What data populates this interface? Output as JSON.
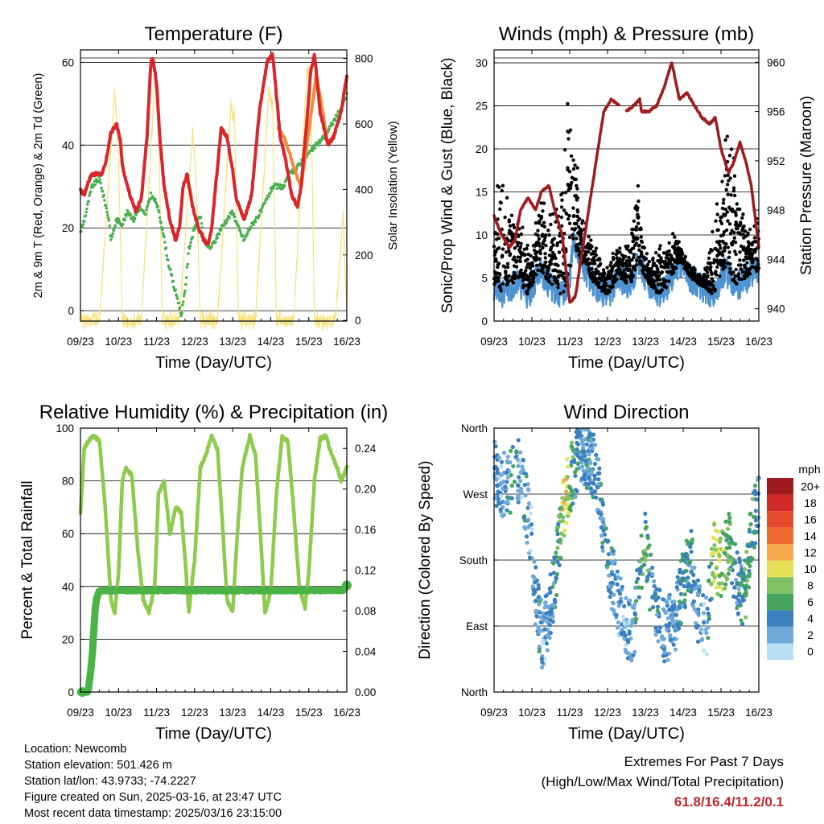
{
  "panels": {
    "temperature": {
      "title": "Temperature (F)",
      "xlabel": "Time (Day/UTC)",
      "ylabel_left": "2m & 9m T (Red, Orange) & 2m Td (Green)",
      "ylabel_right": "Solar Insolation (Yellow)"
    },
    "winds": {
      "title": "Winds (mph) & Pressure (mb)",
      "xlabel": "Time (Day/UTC)",
      "ylabel_left": "Sonic/Prop Wind & Gust (Blue, Black)",
      "ylabel_right": "Station Pressure (Maroon)"
    },
    "humidity": {
      "title": "Relative Humidity (%) & Precipitation (in)",
      "xlabel": "Time (Day/UTC)",
      "ylabel_left": "Percent & Total Rainfall"
    },
    "direction": {
      "title": "Wind Direction",
      "xlabel": "Time (Day/UTC)",
      "ylabel_left": "Direction (Colored By Speed)",
      "colorbar_title": "mph",
      "colorbar_labels": [
        "20+",
        "18",
        "16",
        "14",
        "12",
        "10",
        "8",
        "6",
        "4",
        "2",
        "0"
      ],
      "colorbar_colors": [
        "#9e1a1e",
        "#cf2a27",
        "#e54a2c",
        "#f06a32",
        "#f6a94a",
        "#e6e157",
        "#7fc163",
        "#45a55e",
        "#3a80bf",
        "#6ea9d9",
        "#b8e0f5"
      ]
    }
  },
  "colors": {
    "temp_2m": "#d9262b",
    "temp_9m": "#f48a34",
    "dewpoint": "#4caf50",
    "solar": "#f5e27a",
    "wind": "#4d93d1",
    "gust": "#000000",
    "pressure": "#9e1b1e",
    "rh": "#8ccb4b",
    "precip": "#4ab346"
  },
  "meta": {
    "location": "Location: Newcomb",
    "elevation": "Station elevation: 501.426 m",
    "latlon": "Station lat/lon: 43.9733; -74.2227",
    "created": "Figure created on Sun, 2025-03-16, at 23:47 UTC",
    "recent": "Most recent data timestamp: 2025/03/16 23:15:00"
  },
  "extremes": {
    "title": "Extremes For Past 7 Days",
    "subtitle": "(High/Low/Max Wind/Total Precipitation)",
    "values": "61.8/16.4/11.2/0.1"
  },
  "chart_data": [
    {
      "type": "line",
      "panel": "temperature",
      "xticks": [
        "09/23",
        "10/23",
        "11/23",
        "12/23",
        "13/23",
        "14/23",
        "15/23",
        "16/23"
      ],
      "xlim": [
        0,
        7
      ],
      "ylim_left": [
        -2.5,
        63
      ],
      "yticks_left": [
        0,
        20,
        40,
        60
      ],
      "ylim_right": [
        -2,
        826
      ],
      "yticks_right": [
        0,
        200,
        400,
        600,
        800
      ],
      "series": [
        {
          "name": "2m T",
          "x": [
            0,
            0.1,
            0.2,
            0.3,
            0.55,
            0.65,
            0.8,
            0.95,
            1.05,
            1.1,
            1.3,
            1.45,
            1.6,
            1.75,
            1.85,
            1.9,
            2.0,
            2.1,
            2.2,
            2.35,
            2.5,
            2.6,
            2.7,
            2.8,
            2.95,
            3.1,
            3.25,
            3.35,
            3.45,
            3.55,
            3.7,
            3.85,
            4.0,
            4.1,
            4.3,
            4.5,
            4.6,
            4.7,
            4.9,
            5.05,
            5.15,
            5.25,
            5.3,
            5.4,
            5.55,
            5.7,
            5.8,
            5.95,
            6.05,
            6.15,
            6.3,
            6.5,
            6.65,
            6.85,
            7.0
          ],
          "y": [
            29,
            28,
            31,
            33,
            33,
            35,
            43,
            45,
            41,
            35,
            28,
            24,
            27,
            42,
            60,
            61,
            55,
            40,
            30,
            22,
            17,
            20,
            30,
            33,
            25,
            20,
            17,
            16,
            20,
            30,
            44,
            42,
            34,
            27,
            22,
            28,
            38,
            48,
            60,
            62,
            52,
            42,
            40,
            36,
            28,
            25,
            30,
            46,
            58,
            62,
            48,
            40,
            42,
            48,
            57
          ]
        },
        {
          "name": "9m T",
          "x": [
            5.2,
            5.35,
            5.5,
            5.7,
            5.8,
            6.2,
            6.4,
            6.5
          ],
          "y": [
            44,
            42,
            38,
            32,
            30,
            57,
            46,
            40
          ]
        },
        {
          "name": "2m Td",
          "x": [
            0,
            0.1,
            0.3,
            0.5,
            0.6,
            0.75,
            0.8,
            0.95,
            1.1,
            1.25,
            1.4,
            1.55,
            1.7,
            1.85,
            2.0,
            2.15,
            2.3,
            2.45,
            2.55,
            2.65,
            2.75,
            2.85,
            3.0,
            3.15,
            3.25,
            3.4,
            3.55,
            3.7,
            3.85,
            4.0,
            4.15,
            4.3,
            4.45,
            4.6,
            4.75,
            4.9,
            5.05,
            5.2,
            5.35,
            5.5,
            5.65,
            5.8,
            6.0,
            6.2,
            6.4,
            6.6,
            6.8,
            7.0
          ],
          "y": [
            19,
            22,
            30,
            32,
            28,
            22,
            17,
            22,
            21,
            24,
            22,
            25,
            23,
            28,
            26,
            20,
            12,
            6,
            3,
            -1,
            5,
            15,
            20,
            23,
            17,
            15,
            17,
            20,
            22,
            24,
            20,
            17,
            20,
            22,
            24,
            27,
            30,
            30,
            30,
            33,
            34,
            36,
            38,
            40,
            42,
            45,
            48,
            52
          ]
        },
        {
          "name": "Solar Insolation",
          "axis": "right",
          "x": [
            0,
            0.5,
            0.9,
            1.0,
            1.1,
            1.6,
            1.95,
            2.05,
            2.15,
            2.6,
            2.95,
            3.05,
            3.15,
            3.6,
            3.95,
            4.05,
            4.15,
            4.6,
            4.95,
            5.05,
            5.15,
            5.6,
            5.95,
            6.05,
            6.15,
            6.7,
            6.9,
            7.0
          ],
          "y": [
            0,
            0,
            700,
            500,
            0,
            0,
            720,
            650,
            0,
            0,
            580,
            400,
            0,
            0,
            650,
            620,
            0,
            0,
            700,
            660,
            0,
            0,
            760,
            740,
            0,
            0,
            320,
            20
          ]
        }
      ]
    },
    {
      "type": "scatter",
      "panel": "winds",
      "xticks": [
        "09/23",
        "10/23",
        "11/23",
        "12/23",
        "13/23",
        "14/23",
        "15/23",
        "16/23"
      ],
      "xlim": [
        0,
        7
      ],
      "ylim_left": [
        0,
        31.5
      ],
      "yticks_left": [
        0,
        5,
        10,
        15,
        20,
        25,
        30
      ],
      "ylim_right": [
        939,
        961
      ],
      "yticks_right": [
        940,
        944,
        948,
        952,
        956,
        960
      ],
      "series": [
        {
          "name": "Wind",
          "x": [
            0,
            0.3,
            0.6,
            0.9,
            1.2,
            1.5,
            1.8,
            2.0,
            2.1,
            2.4,
            2.7,
            3.0,
            3.3,
            3.6,
            3.8,
            4.0,
            4.3,
            4.6,
            4.9,
            5.2,
            5.5,
            5.8,
            6.1,
            6.4,
            6.7,
            7.0
          ],
          "y": [
            4,
            3,
            5,
            3,
            6,
            4,
            3,
            5,
            9,
            6,
            4,
            3,
            5,
            4,
            7,
            5,
            3,
            4,
            7,
            5,
            4,
            3,
            6,
            4,
            5,
            6
          ]
        },
        {
          "name": "Gust",
          "x": [
            0,
            0.1,
            0.3,
            0.5,
            0.7,
            0.9,
            1.0,
            1.2,
            1.4,
            1.6,
            1.8,
            1.9,
            2.0,
            2.1,
            2.3,
            2.5,
            2.7,
            2.9,
            3.1,
            3.3,
            3.5,
            3.7,
            3.8,
            3.9,
            4.1,
            4.3,
            4.5,
            4.7,
            4.9,
            5.1,
            5.3,
            5.5,
            5.7,
            5.9,
            6.1,
            6.2,
            6.4,
            6.6,
            6.8,
            6.95
          ],
          "y": [
            9,
            16,
            13,
            12,
            11,
            9,
            7,
            14,
            12,
            11,
            16,
            19,
            26,
            22,
            12,
            10,
            8,
            6,
            7,
            9,
            8,
            12,
            15,
            10,
            7,
            8,
            9,
            10,
            9,
            7,
            6,
            5,
            8,
            13,
            19,
            21,
            16,
            12,
            10,
            13
          ]
        },
        {
          "name": "Station Pressure",
          "axis": "right",
          "x": [
            0,
            0.2,
            0.4,
            0.55,
            0.7,
            0.9,
            1.1,
            1.25,
            1.45,
            1.6,
            1.8,
            2.0,
            2.15,
            2.3,
            2.5,
            2.7,
            2.9,
            3.1,
            3.3,
            3.5,
            3.7,
            3.85,
            3.9,
            4.1,
            4.3,
            4.5,
            4.6,
            4.7,
            4.9,
            5.1,
            5.3,
            5.5,
            5.7,
            5.85,
            6.0,
            6.1,
            6.2,
            6.35,
            6.5,
            6.65,
            6.8,
            7.0
          ],
          "y": [
            947.5,
            946,
            945,
            945.5,
            948,
            949,
            948,
            949.5,
            950,
            948,
            946,
            940.5,
            941,
            944,
            948,
            952,
            956,
            957,
            956.5,
            956,
            956.5,
            957,
            956,
            956,
            956.5,
            958,
            959,
            960,
            957,
            957.5,
            956.5,
            955.5,
            955,
            955.5,
            953,
            952,
            951,
            952,
            953.5,
            952,
            950,
            945
          ]
        }
      ]
    },
    {
      "type": "line",
      "panel": "humidity",
      "xticks": [
        "09/23",
        "10/23",
        "11/23",
        "12/23",
        "13/23",
        "14/23",
        "15/23",
        "16/23"
      ],
      "xlim": [
        0,
        7
      ],
      "ylim_left": [
        0,
        100
      ],
      "yticks_left": [
        0,
        20,
        40,
        60,
        80,
        100
      ],
      "ylim_right": [
        0,
        0.26
      ],
      "yticks_right": [
        "0.00",
        "0.04",
        "0.08",
        "0.12",
        "0.16",
        "0.20",
        "0.24"
      ],
      "series": [
        {
          "name": "Relative Humidity",
          "x": [
            0,
            0.05,
            0.1,
            0.2,
            0.35,
            0.5,
            0.65,
            0.8,
            0.9,
            1.0,
            1.1,
            1.2,
            1.35,
            1.5,
            1.65,
            1.8,
            1.95,
            2.05,
            2.2,
            2.35,
            2.5,
            2.65,
            2.75,
            2.85,
            3.0,
            3.15,
            3.3,
            3.45,
            3.6,
            3.75,
            3.85,
            4.0,
            4.1,
            4.25,
            4.45,
            4.6,
            4.75,
            4.85,
            5.0,
            5.15,
            5.3,
            5.45,
            5.6,
            5.75,
            5.9,
            6.0,
            6.15,
            6.3,
            6.45,
            6.6,
            6.75,
            6.85,
            7.0
          ],
          "y": [
            68,
            80,
            92,
            95,
            97,
            95,
            70,
            35,
            30,
            45,
            80,
            85,
            82,
            55,
            35,
            30,
            40,
            75,
            80,
            60,
            70,
            68,
            50,
            30,
            50,
            85,
            90,
            97,
            92,
            60,
            35,
            30,
            55,
            85,
            97,
            90,
            55,
            30,
            38,
            75,
            97,
            95,
            70,
            40,
            32,
            45,
            80,
            96,
            97,
            90,
            85,
            80,
            85
          ]
        },
        {
          "name": "Total Precipitation",
          "axis": "right",
          "x": [
            0,
            0.2,
            0.3,
            0.35,
            0.4,
            0.5,
            1.0,
            2.0,
            3.0,
            4.0,
            5.0,
            6.0,
            6.9,
            7.0
          ],
          "y": [
            0,
            0,
            0.03,
            0.06,
            0.09,
            0.1,
            0.1,
            0.1,
            0.1,
            0.1,
            0.1,
            0.1,
            0.1,
            0.105
          ]
        }
      ]
    },
    {
      "type": "scatter",
      "panel": "direction",
      "xticks": [
        "09/23",
        "10/23",
        "11/23",
        "12/23",
        "13/23",
        "14/23",
        "15/23",
        "16/23"
      ],
      "xlim": [
        0,
        7
      ],
      "yticks": [
        "North",
        "East",
        "South",
        "West",
        "North"
      ],
      "ylim": [
        0,
        360
      ],
      "series": [
        {
          "name": "Wind Direction",
          "x": [
            0,
            0.1,
            0.2,
            0.3,
            0.4,
            0.5,
            0.6,
            0.7,
            0.8,
            0.9,
            1.0,
            1.1,
            1.2,
            1.3,
            1.5,
            1.7,
            1.8,
            1.9,
            2.0,
            2.1,
            2.2,
            2.3,
            2.5,
            2.7,
            3.0,
            3.2,
            3.4,
            3.7,
            3.8,
            4.0,
            4.2,
            4.5,
            4.8,
            5.0,
            5.2,
            5.4,
            5.6,
            5.8,
            6.0,
            6.2,
            6.4,
            6.6,
            6.8,
            7.0
          ],
          "y": [
            300,
            285,
            270,
            295,
            280,
            300,
            310,
            290,
            270,
            240,
            200,
            130,
            90,
            70,
            120,
            190,
            240,
            270,
            290,
            300,
            315,
            330,
            320,
            300,
            180,
            140,
            100,
            80,
            150,
            200,
            120,
            80,
            100,
            150,
            180,
            110,
            80,
            190,
            170,
            200,
            160,
            120,
            220,
            260
          ],
          "speed": [
            3,
            4,
            2,
            3,
            4,
            5,
            3,
            2,
            4,
            3,
            2,
            3,
            4,
            2,
            3,
            6,
            9,
            11,
            7,
            5,
            4,
            3,
            4,
            3,
            4,
            3,
            2,
            3,
            5,
            6,
            4,
            3,
            3,
            5,
            4,
            3,
            2,
            9,
            8,
            6,
            4,
            5,
            6,
            3
          ]
        }
      ]
    }
  ]
}
